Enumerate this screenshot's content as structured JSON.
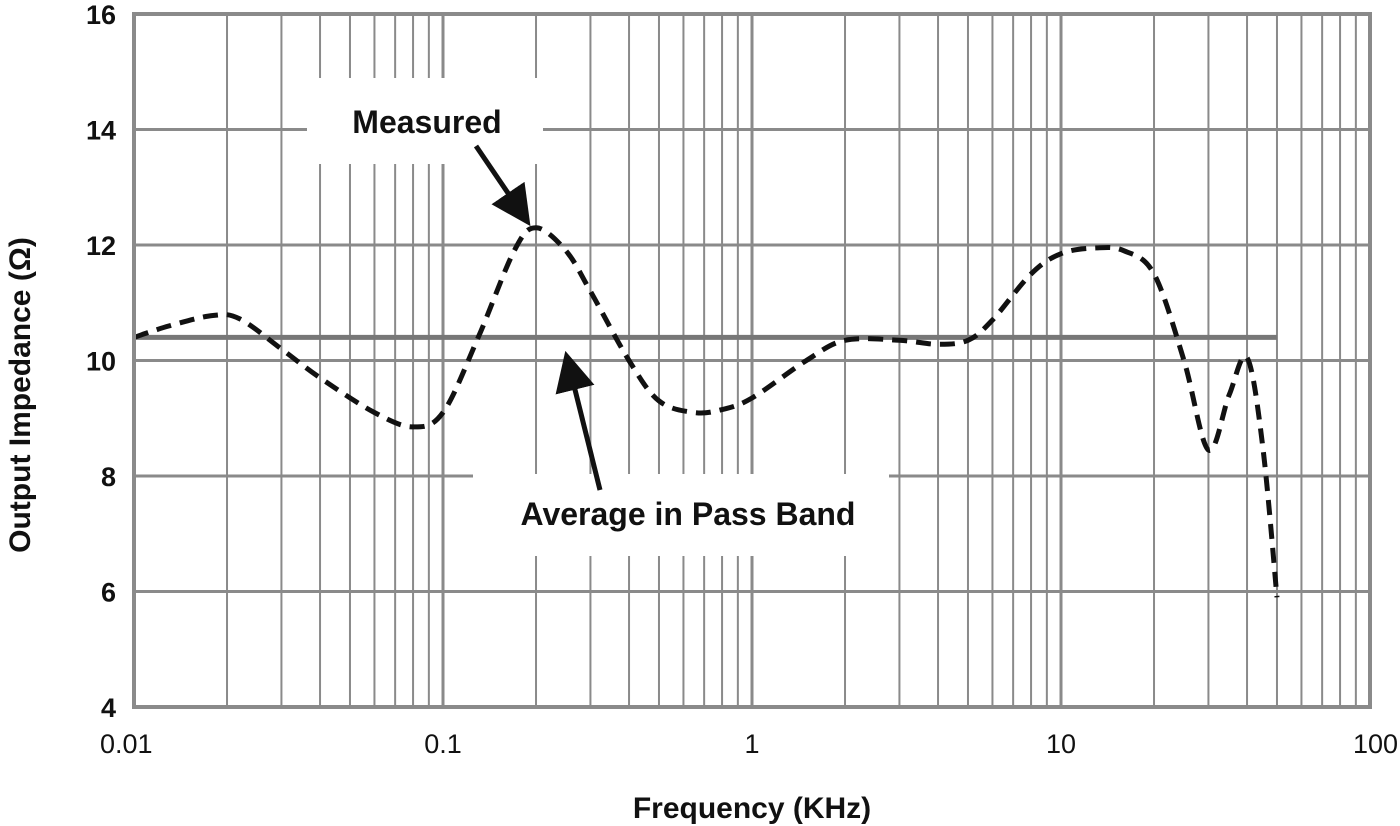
{
  "chart_data": {
    "type": "line",
    "x_scale": "log",
    "xlim": [
      0.01,
      100
    ],
    "ylim": [
      4,
      16
    ],
    "x_ticks": [
      "0.01",
      "0.1",
      "1",
      "10",
      "100"
    ],
    "y_ticks": [
      "4",
      "6",
      "8",
      "10",
      "12",
      "14",
      "16"
    ],
    "xlabel": "Frequency (KHz)",
    "ylabel": "Output Impedance (Ω)",
    "grid": true,
    "series": [
      {
        "name": "Measured",
        "style": "dashed",
        "color": "#111111",
        "points": [
          [
            0.01,
            10.4
          ],
          [
            0.013,
            10.6
          ],
          [
            0.018,
            10.78
          ],
          [
            0.022,
            10.72
          ],
          [
            0.03,
            10.2
          ],
          [
            0.04,
            9.7
          ],
          [
            0.06,
            9.1
          ],
          [
            0.08,
            8.85
          ],
          [
            0.1,
            9.1
          ],
          [
            0.13,
            10.4
          ],
          [
            0.17,
            11.9
          ],
          [
            0.2,
            12.3
          ],
          [
            0.25,
            11.9
          ],
          [
            0.3,
            11.2
          ],
          [
            0.4,
            10.0
          ],
          [
            0.5,
            9.3
          ],
          [
            0.65,
            9.1
          ],
          [
            0.8,
            9.15
          ],
          [
            1.0,
            9.35
          ],
          [
            1.5,
            10.0
          ],
          [
            2.0,
            10.35
          ],
          [
            3.0,
            10.35
          ],
          [
            4.0,
            10.28
          ],
          [
            5.0,
            10.35
          ],
          [
            6.0,
            10.7
          ],
          [
            8.0,
            11.5
          ],
          [
            10.0,
            11.85
          ],
          [
            13.0,
            11.95
          ],
          [
            16.0,
            11.9
          ],
          [
            20.0,
            11.5
          ],
          [
            25.0,
            10.0
          ],
          [
            30.0,
            8.45
          ],
          [
            35.0,
            9.4
          ],
          [
            40.0,
            10.05
          ],
          [
            45.0,
            8.5
          ],
          [
            50.0,
            5.9
          ]
        ]
      },
      {
        "name": "Average in Pass Band",
        "style": "solid",
        "color": "#777777",
        "points": [
          [
            0.01,
            10.4
          ],
          [
            50.0,
            10.4
          ]
        ]
      }
    ],
    "annotations": [
      {
        "text": "Measured",
        "points_to": [
          0.2,
          12.3
        ]
      },
      {
        "text": "Average in Pass Band",
        "points_to": [
          0.25,
          10.4
        ]
      }
    ]
  }
}
